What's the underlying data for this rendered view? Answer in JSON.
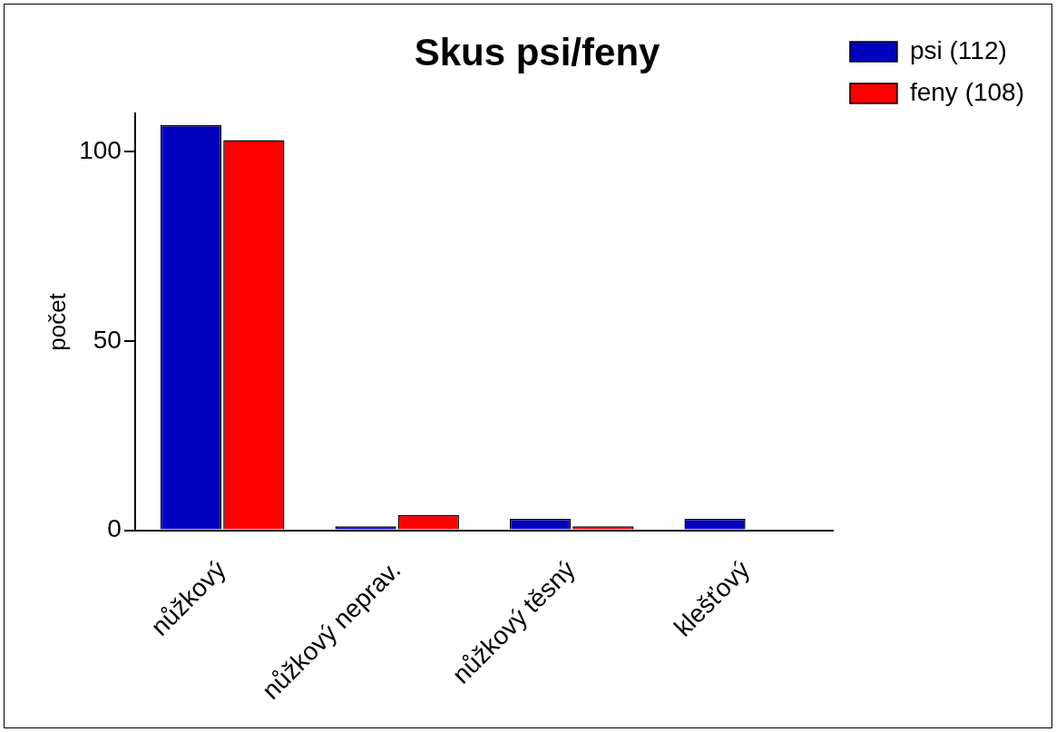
{
  "chart_data": {
    "type": "bar",
    "title": "Skus psi/feny",
    "ylabel": "počet",
    "categories": [
      "nůžkový",
      "nůžkový neprav.",
      "nůžkový těsný",
      "klešťový"
    ],
    "series": [
      {
        "name": "psi (112)",
        "color": "#0000c0",
        "values": [
          107,
          1,
          3,
          3
        ]
      },
      {
        "name": "feny (108)",
        "color": "#ff0000",
        "values": [
          103,
          4,
          1,
          0
        ]
      }
    ],
    "ylim": [
      0,
      110
    ],
    "yticks": [
      0,
      50,
      100
    ],
    "grid": false,
    "legend": "top right"
  }
}
